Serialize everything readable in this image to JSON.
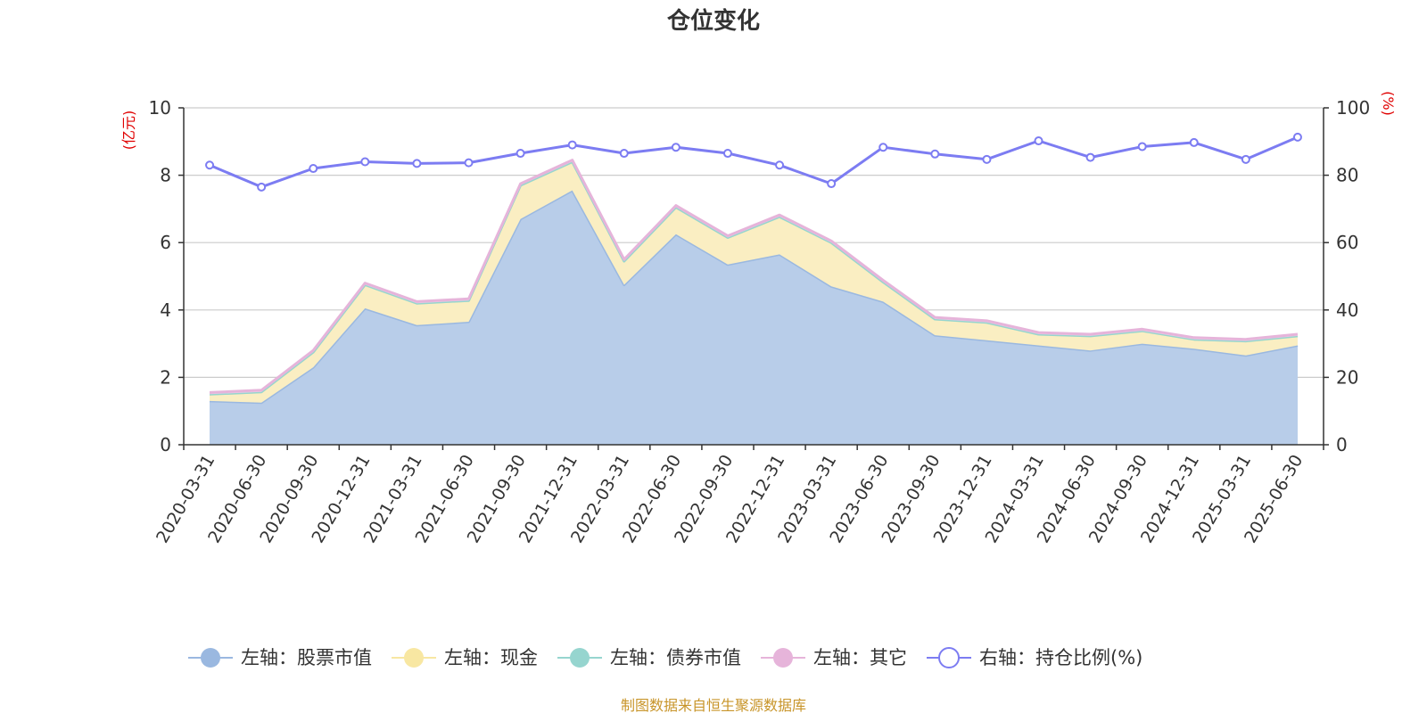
{
  "chart_data": {
    "type": "area",
    "title": "仓位变化",
    "left_axis_unit": "(亿元)",
    "right_axis_unit": "(%)",
    "ylim_left": [
      0,
      10
    ],
    "ylim_right": [
      0,
      100
    ],
    "yticks_left": [
      0,
      2,
      4,
      6,
      8,
      10
    ],
    "yticks_right": [
      0,
      20,
      40,
      60,
      80,
      100
    ],
    "grid": true,
    "stacked": true,
    "legend_position": "bottom",
    "x": [
      "2020-03-31",
      "2020-06-30",
      "2020-09-30",
      "2020-12-31",
      "2021-03-31",
      "2021-06-30",
      "2021-09-30",
      "2021-12-31",
      "2022-03-31",
      "2022-06-30",
      "2022-09-30",
      "2022-12-31",
      "2023-03-31",
      "2023-06-30",
      "2023-09-30",
      "2023-12-31",
      "2024-03-31",
      "2024-06-30",
      "2024-09-30",
      "2024-12-31",
      "2025-03-31",
      "2025-06-30"
    ],
    "series": [
      {
        "name": "左轴：股票市值",
        "axis": "left",
        "color": "#9ab8e0",
        "fill": "#b8cde9",
        "values": [
          1.3,
          1.25,
          2.3,
          4.05,
          3.55,
          3.65,
          6.7,
          7.55,
          4.75,
          6.25,
          5.35,
          5.65,
          4.7,
          4.25,
          3.25,
          3.1,
          2.95,
          2.8,
          3.0,
          2.85,
          2.65,
          2.95
        ]
      },
      {
        "name": "左轴：现金",
        "axis": "left",
        "color": "#f8e7a2",
        "fill": "#faeec2",
        "values": [
          0.2,
          0.32,
          0.45,
          0.7,
          0.65,
          0.63,
          1.0,
          0.85,
          0.7,
          0.8,
          0.8,
          1.12,
          1.3,
          0.58,
          0.48,
          0.53,
          0.33,
          0.43,
          0.38,
          0.28,
          0.43,
          0.28
        ]
      },
      {
        "name": "左轴：债券市值",
        "axis": "left",
        "color": "#96d5cf",
        "fill": "#bfe5e1",
        "values": [
          0,
          0,
          0,
          0,
          0,
          0,
          0,
          0,
          0,
          0,
          0,
          0,
          0,
          0,
          0,
          0,
          0,
          0,
          0,
          0,
          0,
          0
        ]
      },
      {
        "name": "左轴：其它",
        "axis": "left",
        "color": "#e6b4da",
        "fill": "#f0cfe8",
        "values": [
          0.05,
          0.05,
          0.05,
          0.05,
          0.05,
          0.05,
          0.05,
          0.05,
          0.05,
          0.05,
          0.05,
          0.05,
          0.05,
          0.05,
          0.05,
          0.05,
          0.05,
          0.05,
          0.05,
          0.05,
          0.05,
          0.05
        ]
      },
      {
        "name": "右轴：持仓比例(%)",
        "axis": "right",
        "color": "#7c7cf2",
        "values": [
          83.0,
          76.5,
          82.0,
          84.0,
          83.5,
          83.7,
          86.5,
          89.0,
          86.5,
          88.3,
          86.5,
          83.0,
          77.5,
          88.3,
          86.3,
          84.7,
          90.2,
          85.3,
          88.5,
          89.7,
          84.7,
          91.3
        ]
      }
    ]
  },
  "source_note": "制图数据来自恒生聚源数据库"
}
